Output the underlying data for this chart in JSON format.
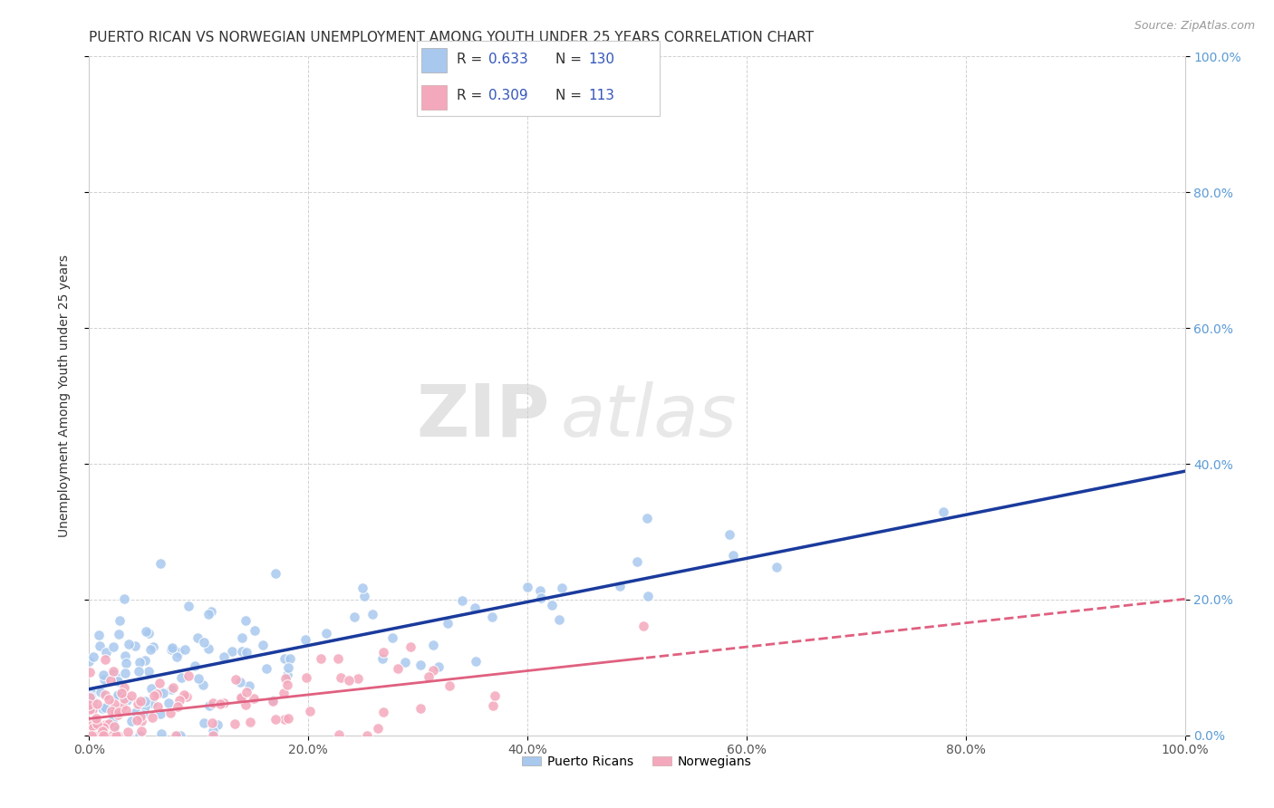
{
  "title": "PUERTO RICAN VS NORWEGIAN UNEMPLOYMENT AMONG YOUTH UNDER 25 YEARS CORRELATION CHART",
  "source": "Source: ZipAtlas.com",
  "xlabel_ticks": [
    "0.0%",
    "20.0%",
    "40.0%",
    "60.0%",
    "80.0%",
    "100.0%"
  ],
  "xlabel_vals": [
    0,
    0.2,
    0.4,
    0.6,
    0.8,
    1.0
  ],
  "ylabel": "Unemployment Among Youth under 25 years",
  "ylabel_ticks": [
    "0.0%",
    "20.0%",
    "40.0%",
    "60.0%",
    "80.0%",
    "100.0%"
  ],
  "ylabel_vals": [
    0,
    0.2,
    0.4,
    0.6,
    0.8,
    1.0
  ],
  "pr_R": 0.633,
  "pr_N": 130,
  "no_R": 0.309,
  "no_N": 113,
  "pr_color": "#A8C8EE",
  "no_color": "#F4A8BC",
  "pr_line_color": "#1A3A9C",
  "no_line_color": "#E06080",
  "legend_label_pr": "Puerto Ricans",
  "legend_label_no": "Norwegians",
  "watermark_zip": "ZIP",
  "watermark_atlas": "atlas",
  "background_color": "#FFFFFF",
  "grid_color": "#CCCCCC",
  "title_fontsize": 11,
  "axis_label_fontsize": 10,
  "tick_fontsize": 10,
  "right_tick_color": "#5B9BD5",
  "seed_pr": 7,
  "seed_no": 13
}
